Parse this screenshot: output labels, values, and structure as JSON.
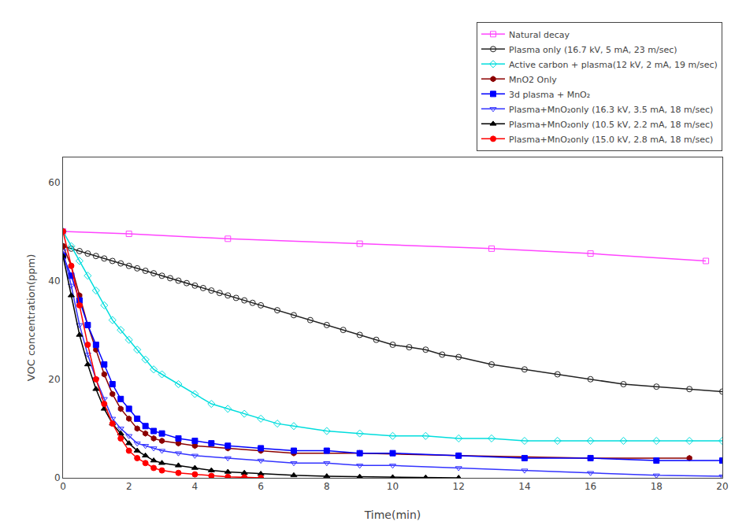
{
  "chart_data": {
    "type": "line",
    "title": "",
    "xlabel": "Time(min)",
    "ylabel": "VOC concentration(ppm)",
    "xlim": [
      0,
      20
    ],
    "ylim": [
      0,
      65
    ],
    "xticks": [
      0,
      2,
      4,
      6,
      8,
      10,
      12,
      14,
      16,
      18,
      20
    ],
    "yticks": [
      0,
      20,
      40,
      60
    ],
    "grid": false,
    "legend": "upper right",
    "series": [
      {
        "name": "Natural decay",
        "color": "#FF44FF",
        "marker": "square-open",
        "line_style": "solid",
        "x": [
          0,
          2,
          5,
          9,
          13,
          16,
          19.5
        ],
        "values": [
          50,
          49.5,
          48.5,
          47.5,
          46.5,
          45.5,
          44
        ]
      },
      {
        "name": "Plasma only (16.7 kV, 5 mA, 23 m/sec)",
        "color": "#222222",
        "marker": "circle-open",
        "line_style": "solid",
        "x": [
          0,
          0.25,
          0.5,
          0.75,
          1.0,
          1.25,
          1.5,
          1.75,
          2.0,
          2.25,
          2.5,
          2.75,
          3.0,
          3.25,
          3.5,
          3.75,
          4.0,
          4.25,
          4.5,
          4.75,
          5.0,
          5.25,
          5.5,
          5.75,
          6.0,
          6.5,
          7.0,
          7.5,
          8.0,
          8.5,
          9.0,
          9.5,
          10.0,
          10.5,
          11.0,
          11.5,
          12.0,
          13.0,
          14.0,
          15.0,
          16.0,
          17.0,
          18.0,
          19.0,
          20.0
        ],
        "values": [
          47,
          46.5,
          46,
          45.5,
          45,
          44.5,
          44,
          43.5,
          43,
          42.5,
          42,
          41.5,
          41,
          40.5,
          40,
          39.5,
          39,
          38.5,
          38,
          37.5,
          37,
          36.5,
          36,
          35.5,
          35,
          34,
          33,
          32,
          31,
          30,
          29,
          28,
          27,
          26.5,
          26,
          25,
          24.5,
          23,
          22,
          21,
          20,
          19,
          18.5,
          18,
          17.5
        ]
      },
      {
        "name": "Active carbon + plasma(12 kV, 2 mA, 19 m/sec)",
        "color": "#00DDDD",
        "marker": "diamond-open",
        "line_style": "solid",
        "x": [
          0,
          0.25,
          0.5,
          0.75,
          1.0,
          1.25,
          1.5,
          1.75,
          2.0,
          2.25,
          2.5,
          2.75,
          3.0,
          3.5,
          4.0,
          4.5,
          5.0,
          5.5,
          6.0,
          6.5,
          7.0,
          8.0,
          9.0,
          10.0,
          11.0,
          12.0,
          13.0,
          14.0,
          15.0,
          16.0,
          17.0,
          18.0,
          19.0,
          20.0
        ],
        "values": [
          50,
          47,
          44,
          41,
          38,
          35,
          32,
          30,
          28,
          26,
          24,
          22,
          21,
          19,
          17,
          15,
          14,
          13,
          12,
          11,
          10.5,
          9.5,
          9,
          8.5,
          8.5,
          8,
          8,
          7.5,
          7.5,
          7.5,
          7.5,
          7.5,
          7.5,
          7.5
        ]
      },
      {
        "name": "MnO2 Only",
        "color": "#8B0000",
        "marker": "hexagon",
        "line_style": "solid",
        "x": [
          0,
          0.25,
          0.5,
          0.75,
          1.0,
          1.25,
          1.5,
          1.75,
          2.0,
          2.25,
          2.5,
          2.75,
          3.0,
          3.5,
          4.0,
          5.0,
          6.0,
          7.0,
          9.0,
          12.0,
          16.0,
          19.0
        ],
        "values": [
          47,
          43,
          37,
          31,
          26,
          21,
          17,
          14,
          12,
          10,
          9,
          8,
          7.5,
          7,
          6.5,
          6,
          5.5,
          5,
          5,
          4.5,
          4,
          4
        ]
      },
      {
        "name": "3d plasma + MnO₂",
        "color": "#0000FF",
        "marker": "square",
        "line_style": "solid",
        "x": [
          0,
          0.25,
          0.5,
          0.75,
          1.0,
          1.25,
          1.5,
          1.75,
          2.0,
          2.25,
          2.5,
          2.75,
          3.0,
          3.5,
          4.0,
          4.5,
          5.0,
          6.0,
          7.0,
          8.0,
          9.0,
          10.0,
          12.0,
          14.0,
          16.0,
          18.0,
          20.0
        ],
        "values": [
          45,
          41,
          36,
          31,
          27,
          23,
          19,
          16,
          14,
          12,
          10.5,
          9.5,
          9,
          8,
          7.5,
          7,
          6.5,
          6,
          5.5,
          5.5,
          5,
          5,
          4.5,
          4,
          4,
          3.5,
          3.5
        ]
      },
      {
        "name": "Plasma+MnO₂only (16.3 kV, 3.5 mA, 18 m/sec)",
        "color": "#3333FF",
        "marker": "triangle-down-open",
        "line_style": "solid",
        "x": [
          0,
          0.25,
          0.5,
          0.75,
          1.0,
          1.25,
          1.5,
          1.75,
          2.0,
          2.25,
          2.5,
          2.75,
          3.0,
          3.5,
          4.0,
          5.0,
          6.0,
          7.0,
          8.0,
          9.0,
          10.0,
          12.0,
          14.0,
          16.0,
          18.0,
          20.0
        ],
        "values": [
          46,
          39,
          31,
          25,
          20,
          16,
          12,
          10,
          8.5,
          7,
          6.5,
          6,
          5.5,
          5,
          4.5,
          4,
          3.5,
          3,
          3,
          2.5,
          2.5,
          2,
          1.5,
          1,
          0.5,
          0.3
        ]
      },
      {
        "name": "Plasma+MnO₂only (10.5 kV, 2.2 mA, 18 m/sec)",
        "color": "#000000",
        "marker": "triangle-up",
        "line_style": "solid",
        "x": [
          0,
          0.25,
          0.5,
          0.75,
          1.0,
          1.25,
          1.5,
          1.75,
          2.0,
          2.25,
          2.5,
          2.75,
          3.0,
          3.5,
          4.0,
          4.5,
          5.0,
          5.5,
          6.0,
          7.0,
          8.0,
          9.0,
          10.0,
          11.0,
          12.0
        ],
        "values": [
          45,
          37,
          29,
          23,
          18,
          14,
          11,
          9,
          7,
          5.5,
          4.5,
          3.5,
          3,
          2.5,
          2,
          1.5,
          1.2,
          1,
          0.8,
          0.5,
          0.3,
          0.2,
          0.1,
          0.05,
          0
        ]
      },
      {
        "name": "Plasma+MnO₂only (15.0 kV, 2.8 mA, 18 m/sec)",
        "color": "#FF0000",
        "marker": "circle",
        "line_style": "solid",
        "x": [
          0,
          0.25,
          0.5,
          0.75,
          1.0,
          1.25,
          1.5,
          1.75,
          2.0,
          2.25,
          2.5,
          2.75,
          3.0,
          3.5,
          4.0,
          4.5,
          5.0,
          5.5,
          6.0
        ],
        "values": [
          50,
          43,
          35,
          27,
          20,
          15,
          11,
          8,
          5.5,
          4,
          3,
          2,
          1.5,
          1,
          0.7,
          0.4,
          0.2,
          0.1,
          0
        ]
      }
    ]
  }
}
